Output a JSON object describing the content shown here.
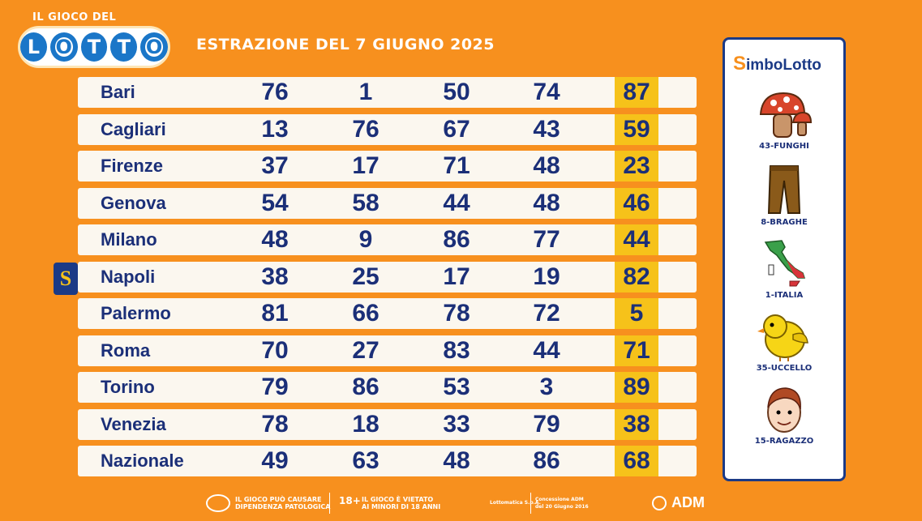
{
  "logo": {
    "small_text": "IL GIOCO DEL",
    "letters": [
      "L",
      "O",
      "T",
      "T",
      "O"
    ]
  },
  "title": "ESTRAZIONE DEL 7 GIUGNO 2025",
  "rows": [
    {
      "city": "Bari",
      "numbers": [
        "76",
        "1",
        "50",
        "74",
        "87"
      ]
    },
    {
      "city": "Cagliari",
      "numbers": [
        "13",
        "76",
        "67",
        "43",
        "59"
      ]
    },
    {
      "city": "Firenze",
      "numbers": [
        "37",
        "17",
        "71",
        "48",
        "23"
      ]
    },
    {
      "city": "Genova",
      "numbers": [
        "54",
        "58",
        "44",
        "48",
        "46"
      ]
    },
    {
      "city": "Milano",
      "numbers": [
        "48",
        "9",
        "86",
        "77",
        "44"
      ]
    },
    {
      "city": "Napoli",
      "numbers": [
        "38",
        "25",
        "17",
        "19",
        "82"
      ]
    },
    {
      "city": "Palermo",
      "numbers": [
        "81",
        "66",
        "78",
        "72",
        "5"
      ]
    },
    {
      "city": "Roma",
      "numbers": [
        "70",
        "27",
        "83",
        "44",
        "71"
      ]
    },
    {
      "city": "Torino",
      "numbers": [
        "79",
        "86",
        "53",
        "3",
        "89"
      ]
    },
    {
      "city": "Venezia",
      "numbers": [
        "78",
        "18",
        "33",
        "79",
        "38"
      ]
    },
    {
      "city": "Nazionale",
      "numbers": [
        "49",
        "63",
        "48",
        "86",
        "68"
      ]
    }
  ],
  "simbolotto_badge": "S",
  "simbolotto": {
    "title_s": "S",
    "title_rest": "imboLotto",
    "symbols": [
      {
        "label": "43-FUNGHI",
        "icon": "mushroom-icon"
      },
      {
        "label": "8-BRAGHE",
        "icon": "trousers-icon"
      },
      {
        "label": "1-ITALIA",
        "icon": "italy-map-icon"
      },
      {
        "label": "35-UCCELLO",
        "icon": "bird-icon"
      },
      {
        "label": "15-RAGAZZO",
        "icon": "boy-face-icon"
      }
    ]
  },
  "footer": {
    "warning1_line1": "IL GIOCO PUÒ CAUSARE",
    "warning1_line2": "DIPENDENZA PATOLOGICA",
    "age": "18+",
    "warning2_line1": "IL GIOCO È VIETATO",
    "warning2_line2": "AI MINORI DI 18 ANNI",
    "company": "Lottomatica S.p.A.",
    "concession_line1": "Concessione ADM",
    "concession_line2": "del 20 Giugno 2016",
    "adm": "ADM"
  },
  "colors": {
    "background": "#f7901e",
    "navy": "#1b2f78",
    "highlight": "#f6c21a",
    "row": "#fbf7ef"
  }
}
